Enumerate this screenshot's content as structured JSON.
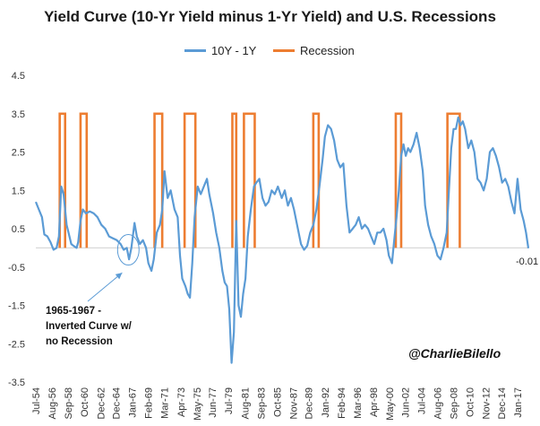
{
  "chart_data": {
    "type": "line",
    "title": "Yield Curve (10-Yr Yield minus 1-Yr Yield) and U.S. Recessions",
    "xlabel": "",
    "ylabel": "",
    "ylim": [
      -3.5,
      4.5
    ],
    "yticks": [
      "4.5",
      "3.5",
      "2.5",
      "1.5",
      "0.5",
      "-0.5",
      "-1.5",
      "-2.5",
      "-3.5"
    ],
    "xlim": [
      1954.5,
      2018.4
    ],
    "xticks": [
      {
        "label": "Jul-54",
        "x": 1954.5
      },
      {
        "label": "Aug-56",
        "x": 1956.6
      },
      {
        "label": "Sep-58",
        "x": 1958.7
      },
      {
        "label": "Oct-60",
        "x": 1960.8
      },
      {
        "label": "Dec-62",
        "x": 1962.9
      },
      {
        "label": "Dec-64",
        "x": 1964.9
      },
      {
        "label": "Jan-67",
        "x": 1967.0
      },
      {
        "label": "Feb-69",
        "x": 1969.1
      },
      {
        "label": "Mar-71",
        "x": 1971.2
      },
      {
        "label": "Apr-73",
        "x": 1973.3
      },
      {
        "label": "May-75",
        "x": 1975.4
      },
      {
        "label": "Jun-77",
        "x": 1977.4
      },
      {
        "label": "Jul-79",
        "x": 1979.5
      },
      {
        "label": "Aug-81",
        "x": 1981.6
      },
      {
        "label": "Sep-83",
        "x": 1983.7
      },
      {
        "label": "Oct-85",
        "x": 1985.8
      },
      {
        "label": "Nov-87",
        "x": 1987.9
      },
      {
        "label": "Dec-89",
        "x": 1989.9
      },
      {
        "label": "Jan-92",
        "x": 1992.0
      },
      {
        "label": "Feb-94",
        "x": 1994.1
      },
      {
        "label": "Mar-96",
        "x": 1996.2
      },
      {
        "label": "Apr-98",
        "x": 1998.3
      },
      {
        "label": "May-00",
        "x": 2000.4
      },
      {
        "label": "Jun-02",
        "x": 2002.4
      },
      {
        "label": "Jul-04",
        "x": 2004.5
      },
      {
        "label": "Aug-06",
        "x": 2006.6
      },
      {
        "label": "Sep-08",
        "x": 2008.7
      },
      {
        "label": "Oct-10",
        "x": 2010.8
      },
      {
        "label": "Nov-12",
        "x": 2012.9
      },
      {
        "label": "Dec-14",
        "x": 2014.9
      },
      {
        "label": "Jan-17",
        "x": 2017.0
      }
    ],
    "legend_position": "top-center",
    "grid": false,
    "series": [
      {
        "name": "10Y - 1Y",
        "color": "#5b9bd5",
        "points": [
          [
            1954.5,
            1.2
          ],
          [
            1954.9,
            1.0
          ],
          [
            1955.3,
            0.8
          ],
          [
            1955.6,
            0.35
          ],
          [
            1956.0,
            0.3
          ],
          [
            1956.4,
            0.15
          ],
          [
            1956.8,
            -0.05
          ],
          [
            1957.2,
            0.0
          ],
          [
            1957.5,
            0.3
          ],
          [
            1957.8,
            1.6
          ],
          [
            1958.1,
            1.4
          ],
          [
            1958.5,
            0.6
          ],
          [
            1958.8,
            0.35
          ],
          [
            1959.1,
            0.1
          ],
          [
            1959.4,
            0.05
          ],
          [
            1959.8,
            0.0
          ],
          [
            1960.0,
            0.15
          ],
          [
            1960.3,
            0.7
          ],
          [
            1960.6,
            1.0
          ],
          [
            1961.0,
            0.9
          ],
          [
            1961.5,
            0.95
          ],
          [
            1962.0,
            0.9
          ],
          [
            1962.5,
            0.8
          ],
          [
            1963.0,
            0.6
          ],
          [
            1963.5,
            0.5
          ],
          [
            1964.0,
            0.3
          ],
          [
            1964.5,
            0.25
          ],
          [
            1965.0,
            0.2
          ],
          [
            1965.5,
            0.1
          ],
          [
            1965.9,
            -0.05
          ],
          [
            1966.3,
            0.0
          ],
          [
            1966.6,
            -0.3
          ],
          [
            1966.9,
            0.0
          ],
          [
            1967.3,
            0.65
          ],
          [
            1967.6,
            0.3
          ],
          [
            1968.0,
            0.1
          ],
          [
            1968.4,
            0.2
          ],
          [
            1968.8,
            0.0
          ],
          [
            1969.1,
            -0.4
          ],
          [
            1969.5,
            -0.6
          ],
          [
            1969.8,
            -0.3
          ],
          [
            1970.2,
            0.4
          ],
          [
            1970.6,
            0.6
          ],
          [
            1970.9,
            1.0
          ],
          [
            1971.2,
            2.0
          ],
          [
            1971.6,
            1.3
          ],
          [
            1972.0,
            1.5
          ],
          [
            1972.5,
            1.0
          ],
          [
            1972.9,
            0.8
          ],
          [
            1973.2,
            -0.2
          ],
          [
            1973.5,
            -0.8
          ],
          [
            1973.9,
            -1.0
          ],
          [
            1974.2,
            -1.2
          ],
          [
            1974.5,
            -1.3
          ],
          [
            1974.8,
            -0.4
          ],
          [
            1975.1,
            0.8
          ],
          [
            1975.5,
            1.6
          ],
          [
            1975.9,
            1.4
          ],
          [
            1976.3,
            1.6
          ],
          [
            1976.7,
            1.8
          ],
          [
            1977.0,
            1.4
          ],
          [
            1977.5,
            0.9
          ],
          [
            1977.9,
            0.4
          ],
          [
            1978.3,
            0.0
          ],
          [
            1978.7,
            -0.6
          ],
          [
            1979.0,
            -0.9
          ],
          [
            1979.3,
            -1.0
          ],
          [
            1979.6,
            -1.6
          ],
          [
            1979.9,
            -3.0
          ],
          [
            1980.2,
            -2.2
          ],
          [
            1980.5,
            0.7
          ],
          [
            1980.8,
            -1.5
          ],
          [
            1981.1,
            -1.8
          ],
          [
            1981.4,
            -1.2
          ],
          [
            1981.7,
            -0.8
          ],
          [
            1982.0,
            0.3
          ],
          [
            1982.4,
            1.0
          ],
          [
            1982.8,
            1.6
          ],
          [
            1983.1,
            1.7
          ],
          [
            1983.5,
            1.8
          ],
          [
            1983.9,
            1.3
          ],
          [
            1984.3,
            1.1
          ],
          [
            1984.7,
            1.2
          ],
          [
            1985.1,
            1.5
          ],
          [
            1985.5,
            1.4
          ],
          [
            1985.9,
            1.6
          ],
          [
            1986.4,
            1.3
          ],
          [
            1986.8,
            1.5
          ],
          [
            1987.2,
            1.1
          ],
          [
            1987.6,
            1.3
          ],
          [
            1988.0,
            1.0
          ],
          [
            1988.5,
            0.5
          ],
          [
            1988.9,
            0.1
          ],
          [
            1989.3,
            -0.05
          ],
          [
            1989.7,
            0.05
          ],
          [
            1990.1,
            0.4
          ],
          [
            1990.5,
            0.6
          ],
          [
            1990.9,
            1.0
          ],
          [
            1991.3,
            1.6
          ],
          [
            1991.7,
            2.3
          ],
          [
            1992.0,
            2.9
          ],
          [
            1992.4,
            3.2
          ],
          [
            1992.8,
            3.1
          ],
          [
            1993.2,
            2.8
          ],
          [
            1993.6,
            2.3
          ],
          [
            1994.0,
            2.1
          ],
          [
            1994.4,
            2.2
          ],
          [
            1994.8,
            1.1
          ],
          [
            1995.2,
            0.4
          ],
          [
            1995.6,
            0.5
          ],
          [
            1996.0,
            0.6
          ],
          [
            1996.4,
            0.8
          ],
          [
            1996.8,
            0.5
          ],
          [
            1997.2,
            0.6
          ],
          [
            1997.6,
            0.5
          ],
          [
            1998.0,
            0.3
          ],
          [
            1998.4,
            0.1
          ],
          [
            1998.8,
            0.4
          ],
          [
            1999.2,
            0.4
          ],
          [
            1999.6,
            0.5
          ],
          [
            2000.0,
            0.2
          ],
          [
            2000.3,
            -0.2
          ],
          [
            2000.7,
            -0.4
          ],
          [
            2001.0,
            0.2
          ],
          [
            2001.3,
            0.8
          ],
          [
            2001.6,
            1.5
          ],
          [
            2001.9,
            2.4
          ],
          [
            2002.2,
            2.7
          ],
          [
            2002.5,
            2.4
          ],
          [
            2002.8,
            2.6
          ],
          [
            2003.1,
            2.5
          ],
          [
            2003.5,
            2.7
          ],
          [
            2003.9,
            3.0
          ],
          [
            2004.3,
            2.6
          ],
          [
            2004.7,
            2.0
          ],
          [
            2005.0,
            1.1
          ],
          [
            2005.4,
            0.6
          ],
          [
            2005.8,
            0.3
          ],
          [
            2006.2,
            0.1
          ],
          [
            2006.6,
            -0.2
          ],
          [
            2007.0,
            -0.3
          ],
          [
            2007.4,
            0.0
          ],
          [
            2007.8,
            0.4
          ],
          [
            2008.1,
            1.5
          ],
          [
            2008.4,
            2.6
          ],
          [
            2008.7,
            3.1
          ],
          [
            2009.0,
            3.1
          ],
          [
            2009.3,
            3.4
          ],
          [
            2009.6,
            3.2
          ],
          [
            2009.9,
            3.3
          ],
          [
            2010.2,
            3.1
          ],
          [
            2010.6,
            2.6
          ],
          [
            2011.0,
            2.8
          ],
          [
            2011.4,
            2.5
          ],
          [
            2011.8,
            1.8
          ],
          [
            2012.2,
            1.7
          ],
          [
            2012.6,
            1.5
          ],
          [
            2013.0,
            1.8
          ],
          [
            2013.4,
            2.5
          ],
          [
            2013.8,
            2.6
          ],
          [
            2014.2,
            2.4
          ],
          [
            2014.6,
            2.1
          ],
          [
            2015.0,
            1.7
          ],
          [
            2015.4,
            1.8
          ],
          [
            2015.8,
            1.6
          ],
          [
            2016.2,
            1.2
          ],
          [
            2016.6,
            0.9
          ],
          [
            2017.0,
            1.8
          ],
          [
            2017.4,
            1.0
          ],
          [
            2017.8,
            0.7
          ],
          [
            2018.1,
            0.4
          ],
          [
            2018.4,
            -0.01
          ]
        ]
      },
      {
        "name": "Recession",
        "color": "#ed7d31",
        "level": 3.5,
        "periods": [
          [
            1957.6,
            1958.3
          ],
          [
            1960.3,
            1961.1
          ],
          [
            1969.9,
            1970.9
          ],
          [
            1973.8,
            1975.2
          ],
          [
            1980.0,
            1980.5
          ],
          [
            1981.5,
            1982.9
          ],
          [
            1990.5,
            1991.2
          ],
          [
            2001.2,
            2001.9
          ],
          [
            2007.9,
            2009.5
          ]
        ]
      }
    ],
    "end_label": "-0.01",
    "annotation": "1965-1967 -\nInverted Curve w/\nno Recession",
    "watermark": "@CharlieBilello"
  }
}
